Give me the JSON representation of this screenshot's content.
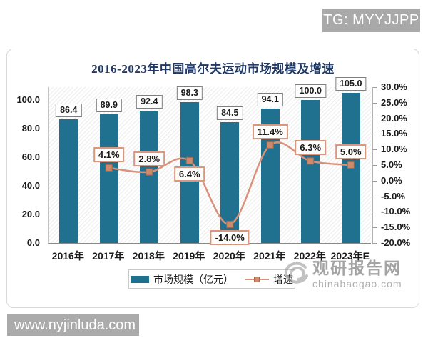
{
  "page": {
    "top_badge": "TG: MYYJJPP",
    "bottom_badge": "www.nyjinluda.com"
  },
  "watermark": {
    "name": "观研报告网",
    "site": "chinabaogao.com"
  },
  "chart_data": {
    "type": "bar",
    "subtype": "bar-line-combo",
    "title": "2016-2023年中国高尔夫运动市场规模及增速",
    "categories": [
      "2016年",
      "2017年",
      "2018年",
      "2019年",
      "2020年",
      "2021年",
      "2022年",
      "2023年E"
    ],
    "series": [
      {
        "name": "市场规模（亿元）",
        "type": "bar",
        "axis": "left",
        "color": "#20718f",
        "values": [
          86.4,
          89.9,
          92.4,
          98.3,
          84.5,
          94.1,
          100.0,
          105.0
        ],
        "labels": [
          "86.4",
          "89.9",
          "92.4",
          "98.3",
          "84.5",
          "94.1",
          "100.0",
          "105.0"
        ]
      },
      {
        "name": "增速",
        "type": "line",
        "axis": "right",
        "color": "#d9917a",
        "marker_fill": "#ce8a6d",
        "marker_stroke": "#a5674d",
        "values": [
          null,
          4.1,
          2.8,
          6.4,
          -14.0,
          11.4,
          6.3,
          5.0
        ],
        "labels": [
          null,
          "4.1%",
          "2.8%",
          "6.4%",
          "-14.0%",
          "11.4%",
          "6.3%",
          "5.0%"
        ],
        "label_positions": [
          null,
          "above",
          "above",
          "below",
          "below",
          "above",
          "above",
          "above"
        ]
      }
    ],
    "left_axis": {
      "ticks": [
        "0.0",
        "20.0",
        "40.0",
        "60.0",
        "80.0",
        "100.0"
      ],
      "min": 0,
      "max": 109
    },
    "right_axis": {
      "ticks": [
        "-20.0%",
        "-15.0%",
        "-10.0%",
        "-5.0%",
        "0.0%",
        "5.0%",
        "10.0%",
        "15.0%",
        "20.0%",
        "25.0%",
        "30.0%"
      ],
      "min": -20,
      "max": 30
    },
    "legend": {
      "position": "bottom",
      "entries": [
        "市场规模（亿元）",
        "增速"
      ]
    },
    "grid": false
  }
}
